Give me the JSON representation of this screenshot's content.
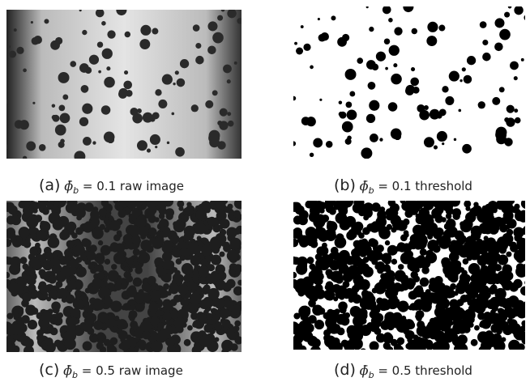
{
  "panels": [
    {
      "label": "(a)",
      "symbol": "ϕ̄",
      "subscript": "b",
      "text": "= 0.1 raw image"
    },
    {
      "label": "(b)",
      "symbol": "ϕ̄",
      "subscript": "b",
      "text": "= 0.1 threshold"
    },
    {
      "label": "(c)",
      "symbol": "ϕ̄",
      "subscript": "b",
      "text": "= 0.5 raw image"
    },
    {
      "label": "(d)",
      "symbol": "ϕ̄",
      "subscript": "b",
      "text": "= 0.5 threshold"
    }
  ]
}
